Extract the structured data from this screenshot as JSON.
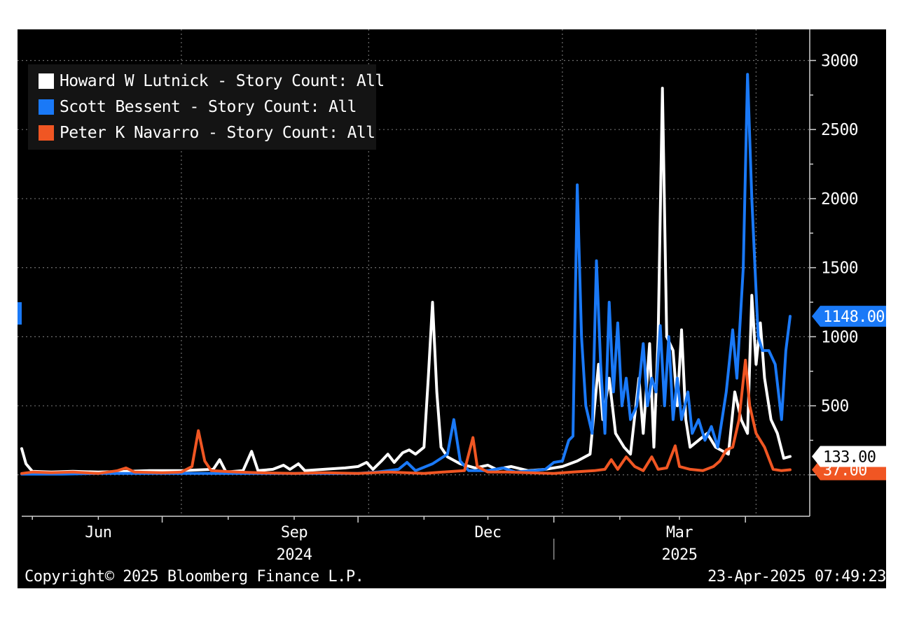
{
  "chart_data": {
    "type": "line",
    "x_start": "2024-04-26",
    "x_end": "2025-04-22",
    "ylim": [
      -300,
      3200
    ],
    "y_ticks": [
      0,
      500,
      1000,
      1500,
      2000,
      2500,
      3000
    ],
    "y_tick_labels": [
      "0",
      "500",
      "1000",
      "1500",
      "2000",
      "2500",
      "3000"
    ],
    "x_month_ticks": [
      {
        "date": "2024-06-01",
        "label": "Jun"
      },
      {
        "date": "2024-09-01",
        "label": "Sep"
      },
      {
        "date": "2024-12-01",
        "label": "Dec"
      },
      {
        "date": "2025-03-01",
        "label": "Mar"
      }
    ],
    "x_year_labels": [
      {
        "date": "2024-09-01",
        "label": "2024"
      },
      {
        "date": "2025-03-01",
        "label": "2025"
      }
    ],
    "legend_position": "top-left",
    "grid": true,
    "series": [
      {
        "name": "Howard W Lutnick - Story Count: All",
        "color": "#ffffff",
        "last_value_label": "133.00",
        "points": [
          [
            "2024-04-26",
            190
          ],
          [
            "2024-04-28",
            80
          ],
          [
            "2024-05-01",
            25
          ],
          [
            "2024-05-10",
            20
          ],
          [
            "2024-05-20",
            25
          ],
          [
            "2024-06-01",
            20
          ],
          [
            "2024-06-15",
            25
          ],
          [
            "2024-06-25",
            30
          ],
          [
            "2024-07-10",
            30
          ],
          [
            "2024-07-25",
            40
          ],
          [
            "2024-07-28",
            110
          ],
          [
            "2024-07-31",
            20
          ],
          [
            "2024-08-08",
            30
          ],
          [
            "2024-08-12",
            170
          ],
          [
            "2024-08-15",
            30
          ],
          [
            "2024-08-22",
            40
          ],
          [
            "2024-08-27",
            70
          ],
          [
            "2024-08-30",
            40
          ],
          [
            "2024-09-03",
            80
          ],
          [
            "2024-09-06",
            30
          ],
          [
            "2024-09-15",
            40
          ],
          [
            "2024-09-25",
            50
          ],
          [
            "2024-10-01",
            60
          ],
          [
            "2024-10-05",
            90
          ],
          [
            "2024-10-08",
            40
          ],
          [
            "2024-10-12",
            100
          ],
          [
            "2024-10-15",
            150
          ],
          [
            "2024-10-18",
            90
          ],
          [
            "2024-10-22",
            160
          ],
          [
            "2024-10-25",
            180
          ],
          [
            "2024-10-28",
            150
          ],
          [
            "2024-11-01",
            200
          ],
          [
            "2024-11-03",
            700
          ],
          [
            "2024-11-05",
            1250
          ],
          [
            "2024-11-07",
            600
          ],
          [
            "2024-11-09",
            200
          ],
          [
            "2024-11-12",
            130
          ],
          [
            "2024-11-18",
            80
          ],
          [
            "2024-11-25",
            50
          ],
          [
            "2024-12-01",
            70
          ],
          [
            "2024-12-05",
            40
          ],
          [
            "2024-12-12",
            60
          ],
          [
            "2024-12-20",
            30
          ],
          [
            "2024-12-28",
            40
          ],
          [
            "2025-01-05",
            60
          ],
          [
            "2025-01-12",
            100
          ],
          [
            "2025-01-18",
            150
          ],
          [
            "2025-01-22",
            800
          ],
          [
            "2025-01-24",
            400
          ],
          [
            "2025-01-27",
            700
          ],
          [
            "2025-01-30",
            300
          ],
          [
            "2025-02-03",
            200
          ],
          [
            "2025-02-06",
            150
          ],
          [
            "2025-02-10",
            700
          ],
          [
            "2025-02-12",
            300
          ],
          [
            "2025-02-15",
            950
          ],
          [
            "2025-02-17",
            200
          ],
          [
            "2025-02-19",
            1000
          ],
          [
            "2025-02-21",
            2800
          ],
          [
            "2025-02-23",
            1000
          ],
          [
            "2025-02-26",
            900
          ],
          [
            "2025-02-28",
            500
          ],
          [
            "2025-03-02",
            1050
          ],
          [
            "2025-03-04",
            400
          ],
          [
            "2025-03-06",
            200
          ],
          [
            "2025-03-10",
            250
          ],
          [
            "2025-03-14",
            300
          ],
          [
            "2025-03-18",
            200
          ],
          [
            "2025-03-24",
            150
          ],
          [
            "2025-03-27",
            600
          ],
          [
            "2025-03-30",
            400
          ],
          [
            "2025-04-02",
            300
          ],
          [
            "2025-04-04",
            1300
          ],
          [
            "2025-04-06",
            800
          ],
          [
            "2025-04-08",
            1100
          ],
          [
            "2025-04-10",
            700
          ],
          [
            "2025-04-13",
            400
          ],
          [
            "2025-04-16",
            300
          ],
          [
            "2025-04-19",
            120
          ],
          [
            "2025-04-22",
            133
          ]
        ]
      },
      {
        "name": "Scott Bessent - Story Count: All",
        "color": "#1a79f7",
        "last_value_label": "1148.00",
        "points": [
          [
            "2024-04-26",
            5
          ],
          [
            "2024-05-15",
            5
          ],
          [
            "2024-06-01",
            10
          ],
          [
            "2024-07-01",
            10
          ],
          [
            "2024-08-01",
            10
          ],
          [
            "2024-09-01",
            10
          ],
          [
            "2024-10-01",
            10
          ],
          [
            "2024-10-10",
            20
          ],
          [
            "2024-10-20",
            40
          ],
          [
            "2024-10-24",
            90
          ],
          [
            "2024-10-28",
            30
          ],
          [
            "2024-11-05",
            80
          ],
          [
            "2024-11-12",
            150
          ],
          [
            "2024-11-15",
            400
          ],
          [
            "2024-11-18",
            100
          ],
          [
            "2024-11-22",
            30
          ],
          [
            "2024-12-01",
            30
          ],
          [
            "2024-12-08",
            50
          ],
          [
            "2024-12-14",
            20
          ],
          [
            "2024-12-22",
            30
          ],
          [
            "2024-12-28",
            40
          ],
          [
            "2025-01-01",
            90
          ],
          [
            "2025-01-05",
            100
          ],
          [
            "2025-01-08",
            250
          ],
          [
            "2025-01-10",
            280
          ],
          [
            "2025-01-12",
            2100
          ],
          [
            "2025-01-14",
            1000
          ],
          [
            "2025-01-16",
            500
          ],
          [
            "2025-01-19",
            300
          ],
          [
            "2025-01-21",
            1550
          ],
          [
            "2025-01-23",
            800
          ],
          [
            "2025-01-25",
            300
          ],
          [
            "2025-01-27",
            1250
          ],
          [
            "2025-01-29",
            600
          ],
          [
            "2025-01-31",
            1100
          ],
          [
            "2025-02-02",
            500
          ],
          [
            "2025-02-04",
            700
          ],
          [
            "2025-02-06",
            400
          ],
          [
            "2025-02-09",
            500
          ],
          [
            "2025-02-12",
            950
          ],
          [
            "2025-02-14",
            500
          ],
          [
            "2025-02-16",
            700
          ],
          [
            "2025-02-18",
            600
          ],
          [
            "2025-02-20",
            1080
          ],
          [
            "2025-02-22",
            500
          ],
          [
            "2025-02-24",
            1000
          ],
          [
            "2025-02-26",
            400
          ],
          [
            "2025-02-28",
            700
          ],
          [
            "2025-03-02",
            400
          ],
          [
            "2025-03-05",
            600
          ],
          [
            "2025-03-07",
            300
          ],
          [
            "2025-03-10",
            400
          ],
          [
            "2025-03-13",
            250
          ],
          [
            "2025-03-16",
            350
          ],
          [
            "2025-03-19",
            200
          ],
          [
            "2025-03-23",
            600
          ],
          [
            "2025-03-26",
            1050
          ],
          [
            "2025-03-28",
            700
          ],
          [
            "2025-03-31",
            1500
          ],
          [
            "2025-04-02",
            2900
          ],
          [
            "2025-04-04",
            2000
          ],
          [
            "2025-04-07",
            1000
          ],
          [
            "2025-04-09",
            900
          ],
          [
            "2025-04-12",
            900
          ],
          [
            "2025-04-15",
            800
          ],
          [
            "2025-04-18",
            400
          ],
          [
            "2025-04-20",
            900
          ],
          [
            "2025-04-22",
            1148
          ]
        ]
      },
      {
        "name": "Peter K Navarro - Story Count: All",
        "color": "#f05623",
        "last_value_label": "37.00",
        "points": [
          [
            "2024-04-26",
            10
          ],
          [
            "2024-05-01",
            20
          ],
          [
            "2024-05-10",
            15
          ],
          [
            "2024-05-20",
            20
          ],
          [
            "2024-06-01",
            10
          ],
          [
            "2024-06-10",
            30
          ],
          [
            "2024-06-14",
            50
          ],
          [
            "2024-06-18",
            20
          ],
          [
            "2024-07-01",
            15
          ],
          [
            "2024-07-10",
            20
          ],
          [
            "2024-07-15",
            60
          ],
          [
            "2024-07-18",
            320
          ],
          [
            "2024-07-21",
            100
          ],
          [
            "2024-07-24",
            30
          ],
          [
            "2024-08-05",
            20
          ],
          [
            "2024-08-15",
            15
          ],
          [
            "2024-09-01",
            10
          ],
          [
            "2024-09-15",
            15
          ],
          [
            "2024-10-01",
            10
          ],
          [
            "2024-10-15",
            20
          ],
          [
            "2024-11-01",
            10
          ],
          [
            "2024-11-10",
            20
          ],
          [
            "2024-11-20",
            30
          ],
          [
            "2024-11-24",
            270
          ],
          [
            "2024-11-26",
            60
          ],
          [
            "2024-12-01",
            20
          ],
          [
            "2024-12-10",
            20
          ],
          [
            "2024-12-20",
            15
          ],
          [
            "2025-01-01",
            10
          ],
          [
            "2025-01-10",
            20
          ],
          [
            "2025-01-20",
            30
          ],
          [
            "2025-01-25",
            40
          ],
          [
            "2025-01-28",
            110
          ],
          [
            "2025-01-31",
            40
          ],
          [
            "2025-02-04",
            130
          ],
          [
            "2025-02-08",
            60
          ],
          [
            "2025-02-12",
            30
          ],
          [
            "2025-02-16",
            130
          ],
          [
            "2025-02-19",
            40
          ],
          [
            "2025-02-23",
            50
          ],
          [
            "2025-02-27",
            210
          ],
          [
            "2025-03-01",
            60
          ],
          [
            "2025-03-06",
            40
          ],
          [
            "2025-03-12",
            30
          ],
          [
            "2025-03-17",
            60
          ],
          [
            "2025-03-20",
            100
          ],
          [
            "2025-03-23",
            180
          ],
          [
            "2025-03-26",
            200
          ],
          [
            "2025-03-29",
            400
          ],
          [
            "2025-04-01",
            830
          ],
          [
            "2025-04-03",
            500
          ],
          [
            "2025-04-06",
            300
          ],
          [
            "2025-04-10",
            200
          ],
          [
            "2025-04-14",
            40
          ],
          [
            "2025-04-18",
            30
          ],
          [
            "2025-04-22",
            37
          ]
        ]
      }
    ]
  },
  "footer": {
    "copyright": "Copyright© 2025 Bloomberg Finance L.P.",
    "timestamp": "23-Apr-2025 07:49:23"
  }
}
